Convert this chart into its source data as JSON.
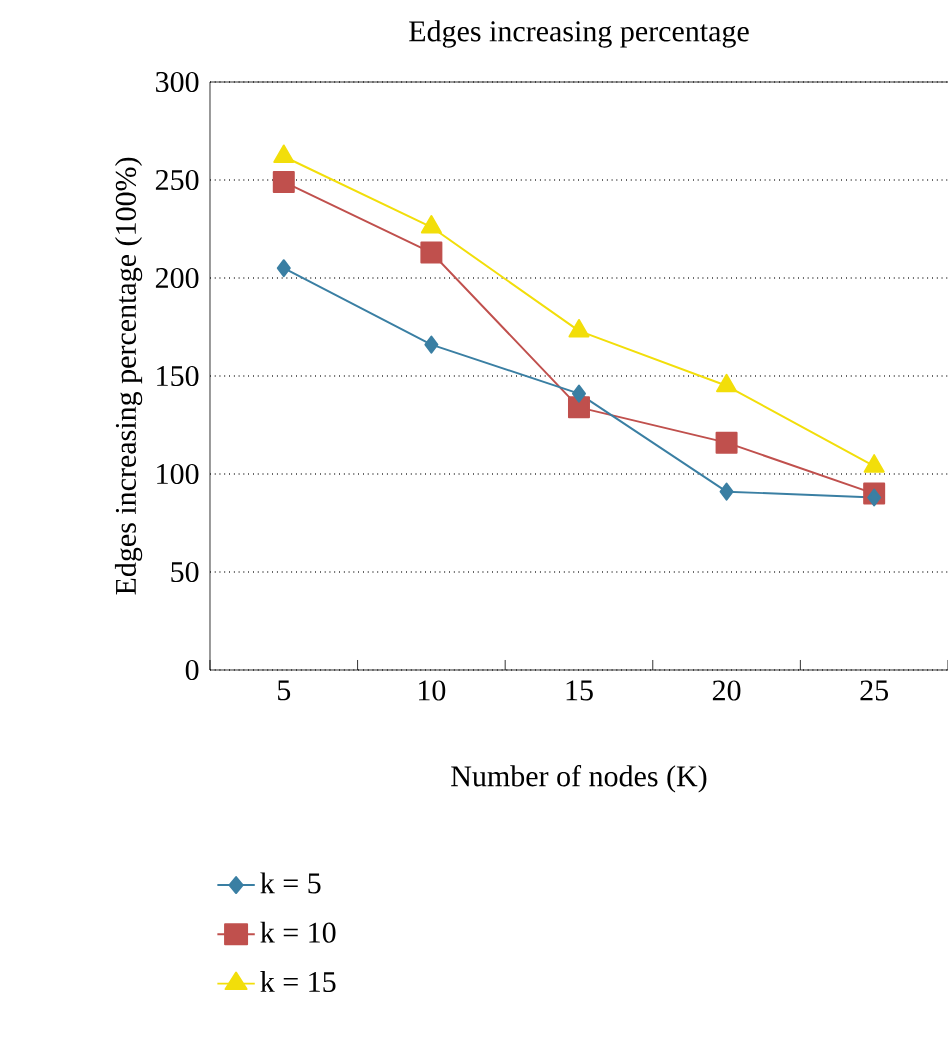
{
  "chart_data": {
    "type": "line",
    "title": "Edges increasing percentage",
    "xlabel": "Number of nodes (K)",
    "ylabel": "Edges increasing percentage (100%)",
    "categories": [
      "5",
      "10",
      "15",
      "20",
      "25"
    ],
    "series": [
      {
        "name": "k = 5",
        "color": "#3a7fa3",
        "marker": "diamond",
        "values": [
          205,
          166,
          141,
          91,
          88
        ]
      },
      {
        "name": "k = 10",
        "color": "#c0504d",
        "marker": "square",
        "values": [
          249,
          213,
          134,
          116,
          90
        ]
      },
      {
        "name": "k = 15",
        "color": "#f2de0a",
        "marker": "triangle",
        "values": [
          262,
          226,
          173,
          145,
          104
        ]
      }
    ],
    "ylim": [
      0,
      300
    ],
    "yticks": [
      0,
      50,
      100,
      150,
      200,
      250,
      300
    ],
    "grid": "y",
    "legend": "bottom",
    "line_style": "solid"
  }
}
